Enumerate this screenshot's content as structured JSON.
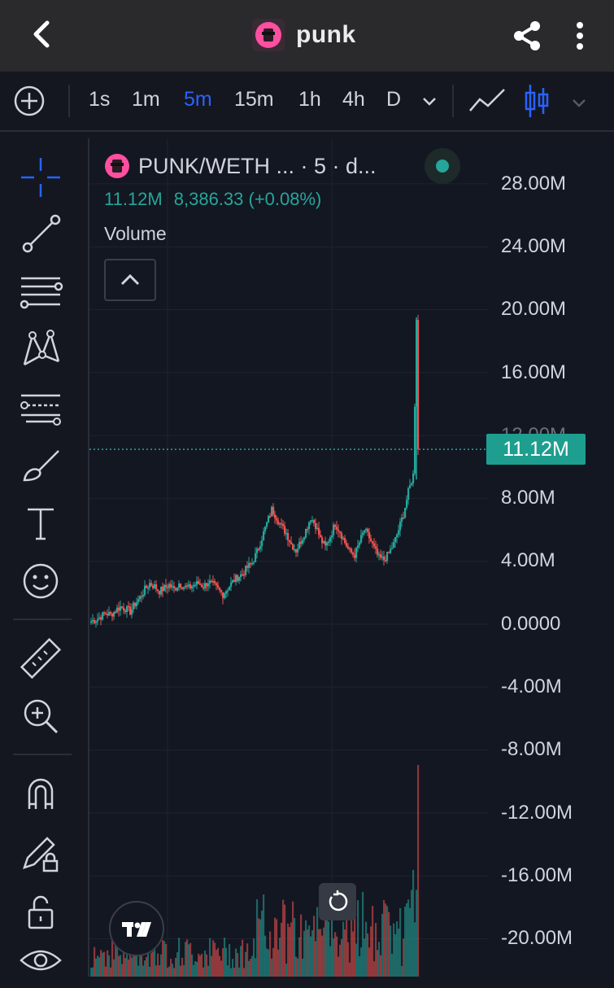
{
  "header": {
    "title": "punk"
  },
  "timeframes": [
    {
      "label": "1s",
      "active": false
    },
    {
      "label": "1m",
      "active": false
    },
    {
      "label": "5m",
      "active": true
    },
    {
      "label": "15m",
      "active": false
    },
    {
      "label": "1h",
      "active": false
    },
    {
      "label": "4h",
      "active": false
    },
    {
      "label": "D",
      "active": false
    }
  ],
  "legend": {
    "symbol": "PUNK/WETH ... · 5 · d...",
    "current_value": "11.12M",
    "change": "8,386.33 (+0.08%)",
    "indicator": "Volume"
  },
  "price_axis": {
    "labels": [
      "28.00M",
      "24.00M",
      "20.00M",
      "16.00M",
      "12.00M",
      "8.00M",
      "4.00M",
      "0.0000",
      "-4.00M",
      "-8.00M",
      "-12.00M",
      "-16.00M",
      "-20.00M"
    ],
    "current_price_label": "11.12M"
  },
  "colors": {
    "up": "#26a69a",
    "down": "#ef5350",
    "accent": "#2962ff",
    "logo": "#ff4fa0"
  },
  "chart_data": {
    "type": "candlestick",
    "y_unit": "market cap",
    "ylim": [
      -22000000,
      29000000
    ],
    "current_value": 11120000,
    "approx_close_path": [
      0.2,
      0.3,
      0.5,
      0.7,
      0.6,
      0.9,
      1.1,
      1.0,
      0.8,
      1.3,
      1.7,
      2.2,
      2.6,
      2.4,
      2.1,
      2.3,
      2.5,
      2.2,
      2.6,
      2.4,
      2.3,
      2.5,
      2.6,
      2.4,
      2.7,
      2.5,
      2.2,
      1.9,
      2.3,
      2.7,
      3.0,
      3.2,
      3.6,
      3.9,
      4.6,
      5.5,
      6.4,
      7.3,
      6.8,
      6.2,
      5.8,
      5.1,
      4.7,
      5.3,
      6.0,
      6.8,
      6.3,
      5.4,
      4.9,
      5.6,
      6.4,
      5.9,
      5.2,
      4.6,
      4.4,
      5.2,
      6.0,
      5.5,
      4.8,
      4.2,
      4.1,
      4.5,
      5.1,
      6.0,
      7.0,
      8.4,
      9.5,
      14.0,
      19.5,
      11.12
    ]
  }
}
